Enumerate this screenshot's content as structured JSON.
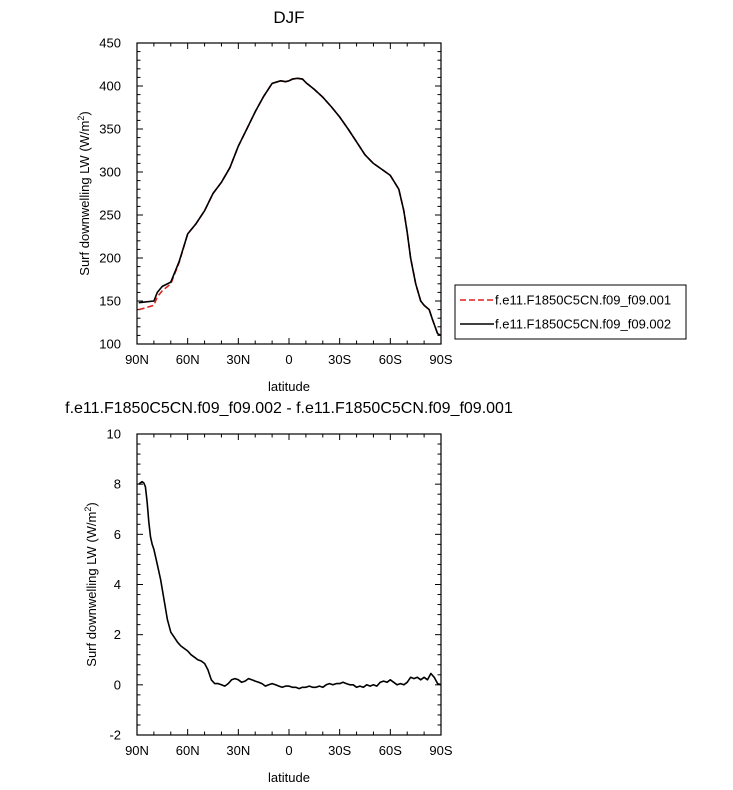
{
  "chart_data": [
    {
      "type": "line",
      "title": "DJF",
      "xlabel": "latitude",
      "ylabel": "Surf downwelling LW (W/m²)",
      "ylabel_main": "Surf downwelling LW (W/m",
      "ylabel_sup": "2",
      "ylabel_end": ")",
      "xlim": [
        90,
        -90
      ],
      "ylim": [
        100,
        450
      ],
      "xticks": [
        {
          "v": 90,
          "label": "90N"
        },
        {
          "v": 60,
          "label": "60N"
        },
        {
          "v": 30,
          "label": "30N"
        },
        {
          "v": 0,
          "label": "0"
        },
        {
          "v": -30,
          "label": "30S"
        },
        {
          "v": -60,
          "label": "60S"
        },
        {
          "v": -90,
          "label": "90S"
        }
      ],
      "yticks": [
        100,
        150,
        200,
        250,
        300,
        350,
        400,
        450
      ],
      "legend_placement": "right",
      "series": [
        {
          "name": "f.e11.F1850C5CN.f09_f09.001",
          "color": "#e0201b",
          "dash": "dashed",
          "x": [
            89,
            85,
            80,
            78,
            75,
            70,
            65,
            60,
            55,
            50,
            45,
            40,
            35,
            30,
            25,
            20,
            15,
            10,
            5,
            2,
            0,
            -2,
            -5,
            -8,
            -10,
            -15,
            -20,
            -25,
            -30,
            -35,
            -40,
            -45,
            -50,
            -55,
            -60,
            -65,
            -68,
            -70,
            -72,
            -75,
            -78,
            -80,
            -83,
            -85,
            -88,
            -90
          ],
          "y": [
            140,
            142,
            145,
            155,
            162,
            170,
            195,
            228,
            240,
            255,
            275,
            288,
            305,
            330,
            350,
            370,
            388,
            403,
            406,
            405,
            406,
            408,
            409,
            408,
            404,
            396,
            387,
            376,
            364,
            350,
            335,
            320,
            310,
            303,
            296,
            280,
            255,
            230,
            200,
            170,
            150,
            145,
            140,
            128,
            112,
            110
          ]
        },
        {
          "name": "f.e11.F1850C5CN.f09_f09.002",
          "color": "#000000",
          "dash": "solid",
          "x": [
            89,
            85,
            80,
            78,
            75,
            70,
            65,
            60,
            55,
            50,
            45,
            40,
            35,
            30,
            25,
            20,
            15,
            10,
            5,
            2,
            0,
            -2,
            -5,
            -8,
            -10,
            -15,
            -20,
            -25,
            -30,
            -35,
            -40,
            -45,
            -50,
            -55,
            -60,
            -65,
            -68,
            -70,
            -72,
            -75,
            -78,
            -80,
            -83,
            -85,
            -88,
            -90
          ],
          "y": [
            148,
            149,
            150,
            160,
            167,
            172,
            196,
            228,
            240,
            255,
            275,
            288,
            305,
            330,
            350,
            370,
            388,
            403,
            406,
            405,
            406,
            408,
            409,
            408,
            404,
            396,
            387,
            376,
            364,
            350,
            335,
            320,
            310,
            303,
            296,
            280,
            255,
            230,
            200,
            170,
            150,
            145,
            140,
            128,
            112,
            110
          ]
        }
      ]
    },
    {
      "type": "line",
      "title": "f.e11.F1850C5CN.f09_f09.002 - f.e11.F1850C5CN.f09_f09.001",
      "xlabel": "latitude",
      "ylabel": "Surf downwelling LW (W/m²)",
      "ylabel_main": "Surf downwelling LW (W/m",
      "ylabel_sup": "2",
      "ylabel_end": ")",
      "xlim": [
        90,
        -90
      ],
      "ylim": [
        -2,
        10
      ],
      "xticks": [
        {
          "v": 90,
          "label": "90N"
        },
        {
          "v": 60,
          "label": "60N"
        },
        {
          "v": 30,
          "label": "30N"
        },
        {
          "v": 0,
          "label": "0"
        },
        {
          "v": -30,
          "label": "30S"
        },
        {
          "v": -60,
          "label": "60S"
        },
        {
          "v": -90,
          "label": "90S"
        }
      ],
      "yticks": [
        -2,
        0,
        2,
        4,
        6,
        8,
        10
      ],
      "series": [
        {
          "name": "",
          "color": "#000000",
          "dash": "solid",
          "x": [
            89,
            87,
            86,
            85,
            84,
            83,
            82,
            81,
            80,
            78,
            76,
            74,
            72,
            70,
            68,
            66,
            64,
            62,
            60,
            58,
            56,
            54,
            52,
            50,
            48,
            46,
            44,
            42,
            40,
            38,
            36,
            34,
            32,
            30,
            28,
            26,
            24,
            22,
            20,
            18,
            16,
            14,
            12,
            10,
            8,
            6,
            4,
            2,
            0,
            -2,
            -4,
            -6,
            -8,
            -10,
            -12,
            -14,
            -16,
            -18,
            -20,
            -22,
            -24,
            -26,
            -28,
            -30,
            -32,
            -34,
            -36,
            -38,
            -40,
            -42,
            -44,
            -46,
            -48,
            -50,
            -52,
            -54,
            -56,
            -58,
            -60,
            -62,
            -64,
            -66,
            -68,
            -70,
            -72,
            -74,
            -76,
            -78,
            -80,
            -82,
            -84,
            -86,
            -88,
            -90
          ],
          "y": [
            8.0,
            8.1,
            8.05,
            7.9,
            7.3,
            6.5,
            5.9,
            5.6,
            5.4,
            4.8,
            4.2,
            3.4,
            2.6,
            2.1,
            1.9,
            1.7,
            1.55,
            1.45,
            1.35,
            1.2,
            1.1,
            1.0,
            0.95,
            0.85,
            0.6,
            0.2,
            0.05,
            0.05,
            0.0,
            -0.05,
            0.05,
            0.2,
            0.25,
            0.2,
            0.1,
            0.15,
            0.25,
            0.2,
            0.15,
            0.1,
            0.05,
            -0.05,
            0.0,
            0.05,
            0.0,
            -0.05,
            -0.1,
            -0.05,
            -0.05,
            -0.1,
            -0.1,
            -0.15,
            -0.1,
            -0.1,
            -0.05,
            -0.1,
            -0.1,
            -0.05,
            -0.1,
            0.0,
            0.05,
            0.0,
            0.05,
            0.05,
            0.1,
            0.05,
            0.0,
            0.0,
            -0.1,
            -0.05,
            -0.1,
            0.0,
            -0.05,
            0.0,
            -0.05,
            0.1,
            0.15,
            0.1,
            0.2,
            0.1,
            0.0,
            0.05,
            0.0,
            0.1,
            0.3,
            0.25,
            0.3,
            0.2,
            0.3,
            0.2,
            0.45,
            0.3,
            0.05,
            0.0
          ]
        }
      ]
    }
  ]
}
